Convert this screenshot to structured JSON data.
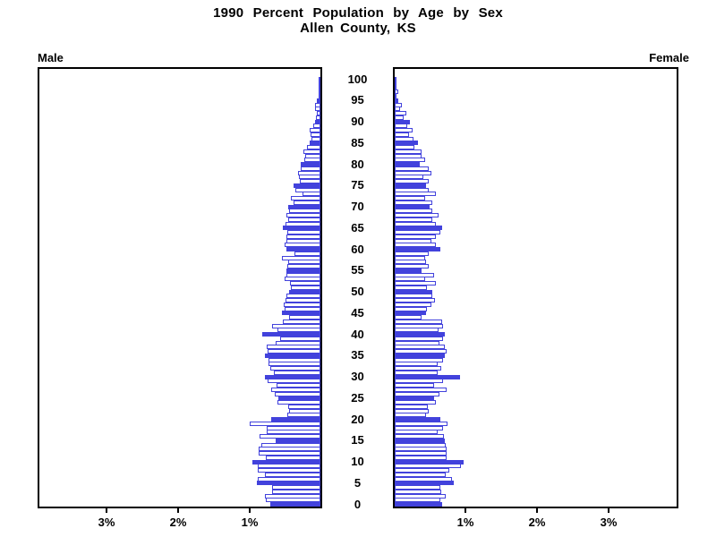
{
  "title": {
    "line1": "1990 Percent Population by Age by Sex",
    "line2": "Allen County, KS"
  },
  "panel_labels": {
    "left": "Male",
    "right": "Female"
  },
  "colors": {
    "bar_blue": "#4242dc",
    "frame_black": "#000000",
    "background": "#ffffff"
  },
  "chart_data": {
    "type": "bar",
    "subtype": "population-pyramid",
    "title": "1990 Percent Population by Age by Sex — Allen County, KS",
    "unit": "percent of population",
    "orientation": "horizontal-mirrored",
    "age_min": 0,
    "age_max": 100,
    "age_tick_interval": 5,
    "age_tick_labels": [
      0,
      5,
      10,
      15,
      20,
      25,
      30,
      35,
      40,
      45,
      50,
      55,
      60,
      65,
      70,
      75,
      80,
      85,
      90,
      95,
      100
    ],
    "x_axis": {
      "max_percent": 3.975,
      "tick_values": [
        1,
        2,
        3
      ],
      "tick_labels_left": [
        "1%",
        "2%",
        "3%"
      ],
      "tick_labels_right": [
        "1%",
        "2%",
        "3%"
      ],
      "grid": false
    },
    "solid_fill_rule": "ages divisible by 5 are solid blue; other ages are white with blue outline",
    "legend_position": "none",
    "series": [
      {
        "name": "Male",
        "side": "left",
        "values_by_age": [
          0.7,
          0.76,
          0.78,
          0.67,
          0.68,
          0.89,
          0.87,
          0.78,
          0.87,
          0.87,
          0.95,
          0.76,
          0.86,
          0.86,
          0.82,
          0.63,
          0.85,
          0.75,
          0.75,
          0.99,
          0.69,
          0.46,
          0.44,
          0.45,
          0.6,
          0.59,
          0.64,
          0.69,
          0.61,
          0.74,
          0.78,
          0.65,
          0.7,
          0.72,
          0.72,
          0.77,
          0.74,
          0.75,
          0.63,
          0.56,
          0.81,
          0.6,
          0.67,
          0.53,
          0.44,
          0.54,
          0.5,
          0.51,
          0.49,
          0.47,
          0.44,
          0.41,
          0.43,
          0.5,
          0.48,
          0.47,
          0.46,
          0.45,
          0.54,
          0.36,
          0.48,
          0.5,
          0.48,
          0.48,
          0.46,
          0.53,
          0.49,
          0.45,
          0.47,
          0.44,
          0.45,
          0.38,
          0.41,
          0.25,
          0.35,
          0.37,
          0.29,
          0.3,
          0.31,
          0.28,
          0.27,
          0.22,
          0.21,
          0.24,
          0.19,
          0.15,
          0.13,
          0.14,
          0.15,
          0.1,
          0.07,
          0.06,
          0.05,
          0.08,
          0.07,
          0.05,
          0.03,
          0.02,
          0.02,
          0.01,
          0.01
        ]
      },
      {
        "name": "Female",
        "side": "right",
        "values_by_age": [
          0.66,
          0.64,
          0.71,
          0.65,
          0.64,
          0.82,
          0.8,
          0.71,
          0.76,
          0.93,
          0.96,
          0.72,
          0.72,
          0.72,
          0.71,
          0.7,
          0.69,
          0.6,
          0.68,
          0.74,
          0.64,
          0.44,
          0.47,
          0.46,
          0.57,
          0.55,
          0.62,
          0.72,
          0.55,
          0.68,
          0.91,
          0.6,
          0.65,
          0.6,
          0.68,
          0.7,
          0.72,
          0.7,
          0.63,
          0.68,
          0.7,
          0.61,
          0.67,
          0.66,
          0.38,
          0.44,
          0.45,
          0.51,
          0.56,
          0.53,
          0.52,
          0.45,
          0.58,
          0.42,
          0.55,
          0.37,
          0.47,
          0.44,
          0.42,
          0.47,
          0.64,
          0.57,
          0.51,
          0.58,
          0.64,
          0.66,
          0.57,
          0.53,
          0.61,
          0.53,
          0.49,
          0.53,
          0.43,
          0.57,
          0.48,
          0.44,
          0.47,
          0.4,
          0.51,
          0.47,
          0.35,
          0.42,
          0.37,
          0.38,
          0.27,
          0.32,
          0.26,
          0.2,
          0.25,
          0.18,
          0.21,
          0.13,
          0.16,
          0.08,
          0.1,
          0.05,
          0.03,
          0.05,
          0.02,
          0.02,
          0.02
        ]
      }
    ]
  }
}
